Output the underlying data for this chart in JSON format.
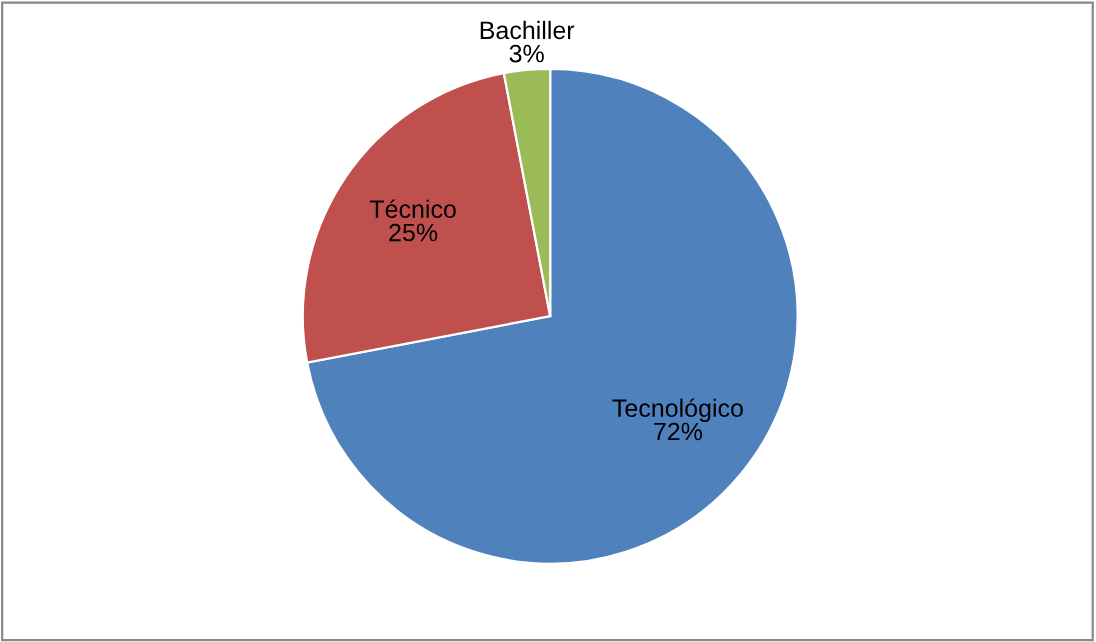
{
  "chart_data": {
    "type": "pie",
    "categories": [
      "Tecnológico",
      "Técnico",
      "Bachiller"
    ],
    "values": [
      72,
      25,
      3
    ],
    "value_labels": [
      "72%",
      "25%",
      "3%"
    ],
    "colors": [
      "#4f81bd",
      "#c0504d",
      "#9bbb59"
    ],
    "legend": false
  }
}
